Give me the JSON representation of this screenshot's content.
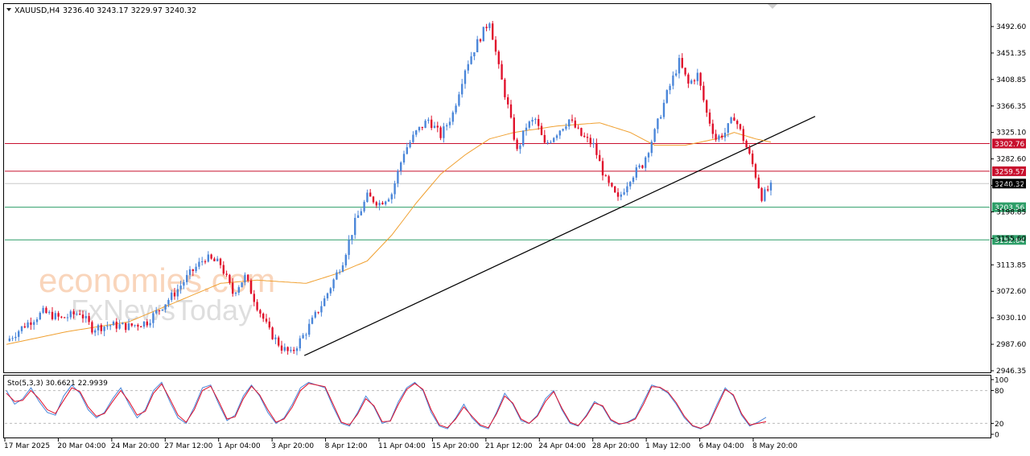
{
  "header": {
    "symbol": "XAUUSD,H4",
    "ohlc": "3236.40 3243.17 3229.97 3240.32"
  },
  "watermark": {
    "brand_top": "economies.com",
    "brand_bottom": "FxNewsToday"
  },
  "colors": {
    "bull": "#4a86d9",
    "bear": "#e0102b",
    "ma": "#f0a030",
    "resistance": "#c8102e",
    "support": "#2e9e68",
    "trendline": "#000000",
    "stoch_main": "#4a86d9",
    "stoch_signal": "#e0102b"
  },
  "chart_data": [
    {
      "type": "candlestick",
      "symbol": "XAUUSD",
      "timeframe": "H4",
      "ylim": [
        2946.35,
        3520
      ],
      "y_ticks": [
        "3492.60",
        "3451.35",
        "3408.85",
        "3366.35",
        "3325.10",
        "3282.60",
        "3240.32",
        "3198.85",
        "3155.60",
        "3113.85",
        "3072.60",
        "3030.10",
        "2987.60",
        "2946.35"
      ],
      "x_ticks": [
        "17 Mar 2025",
        "20 Mar 04:00",
        "24 Mar 20:00",
        "27 Mar 12:00",
        "1 Apr 04:00",
        "3 Apr 20:00",
        "8 Apr 12:00",
        "11 Apr 04:00",
        "15 Apr 20:00",
        "21 Apr 12:00",
        "24 Apr 04:00",
        "28 Apr 20:00",
        "1 May 12:00",
        "6 May 04:00",
        "8 May 20:00"
      ],
      "levels": [
        {
          "value": 3302.76,
          "label": "3302.76",
          "kind": "resistance"
        },
        {
          "value": 3259.57,
          "label": "3259.57",
          "kind": "resistance"
        },
        {
          "value": 3240.32,
          "label": "3240.32",
          "kind": "current"
        },
        {
          "value": 3203.56,
          "label": "3203.56",
          "kind": "support"
        },
        {
          "value": 3152.64,
          "label": "3152.64",
          "kind": "support"
        }
      ],
      "trendline": {
        "from": [
          "3 Apr 20:00",
          2970
        ],
        "to": [
          "8 May 20:00",
          3345
        ]
      },
      "price_path": [
        [
          0,
          2995
        ],
        [
          6,
          3020
        ],
        [
          12,
          3040
        ],
        [
          18,
          3030
        ],
        [
          24,
          3040
        ],
        [
          28,
          3015
        ],
        [
          34,
          3020
        ],
        [
          40,
          3018
        ],
        [
          46,
          3025
        ],
        [
          50,
          3045
        ],
        [
          55,
          3070
        ],
        [
          60,
          3100
        ],
        [
          65,
          3125
        ],
        [
          70,
          3115
        ],
        [
          74,
          3070
        ],
        [
          78,
          3095
        ],
        [
          82,
          3050
        ],
        [
          86,
          3010
        ],
        [
          90,
          2985
        ],
        [
          93,
          2975
        ],
        [
          98,
          3010
        ],
        [
          104,
          3060
        ],
        [
          110,
          3120
        ],
        [
          114,
          3180
        ],
        [
          118,
          3220
        ],
        [
          122,
          3210
        ],
        [
          126,
          3225
        ],
        [
          130,
          3290
        ],
        [
          134,
          3320
        ],
        [
          138,
          3340
        ],
        [
          142,
          3315
        ],
        [
          146,
          3350
        ],
        [
          150,
          3420
        ],
        [
          154,
          3460
        ],
        [
          158,
          3495
        ],
        [
          161,
          3420
        ],
        [
          164,
          3360
        ],
        [
          167,
          3290
        ],
        [
          170,
          3330
        ],
        [
          173,
          3340
        ],
        [
          176,
          3300
        ],
        [
          180,
          3320
        ],
        [
          184,
          3340
        ],
        [
          188,
          3315
        ],
        [
          192,
          3300
        ],
        [
          196,
          3245
        ],
        [
          200,
          3215
        ],
        [
          204,
          3250
        ],
        [
          208,
          3270
        ],
        [
          212,
          3320
        ],
        [
          216,
          3380
        ],
        [
          220,
          3430
        ],
        [
          223,
          3395
        ],
        [
          226,
          3410
        ],
        [
          229,
          3350
        ],
        [
          232,
          3310
        ],
        [
          235,
          3320
        ],
        [
          238,
          3345
        ],
        [
          241,
          3310
        ],
        [
          244,
          3270
        ],
        [
          247,
          3220
        ],
        [
          250,
          3235
        ]
      ],
      "ma_path": [
        [
          0,
          2990
        ],
        [
          20,
          3010
        ],
        [
          40,
          3025
        ],
        [
          55,
          3055
        ],
        [
          70,
          3085
        ],
        [
          82,
          3090
        ],
        [
          98,
          3085
        ],
        [
          108,
          3100
        ],
        [
          118,
          3120
        ],
        [
          126,
          3160
        ],
        [
          134,
          3210
        ],
        [
          142,
          3255
        ],
        [
          150,
          3285
        ],
        [
          158,
          3310
        ],
        [
          166,
          3320
        ],
        [
          180,
          3330
        ],
        [
          194,
          3335
        ],
        [
          204,
          3320
        ],
        [
          212,
          3300
        ],
        [
          222,
          3300
        ],
        [
          232,
          3310
        ],
        [
          238,
          3320
        ],
        [
          245,
          3310
        ],
        [
          250,
          3305
        ]
      ]
    },
    {
      "type": "line",
      "title": "Sto(5,3,3) 30.6621 22.9939",
      "ylim": [
        0,
        100
      ],
      "y_ticks": [
        "100",
        "80",
        "20",
        "0"
      ],
      "levels": [
        80,
        20
      ],
      "series": [
        {
          "name": "main",
          "values": [
            80,
            55,
            65,
            85,
            60,
            40,
            35,
            70,
            90,
            75,
            45,
            30,
            40,
            65,
            85,
            55,
            30,
            45,
            80,
            95,
            60,
            30,
            20,
            50,
            85,
            90,
            55,
            25,
            35,
            70,
            90,
            70,
            40,
            20,
            30,
            55,
            85,
            95,
            90,
            85,
            50,
            20,
            15,
            40,
            70,
            50,
            20,
            25,
            60,
            85,
            95,
            80,
            40,
            15,
            10,
            30,
            55,
            30,
            15,
            10,
            40,
            75,
            55,
            25,
            20,
            35,
            65,
            80,
            45,
            20,
            15,
            35,
            60,
            50,
            25,
            18,
            22,
            30,
            60,
            90,
            85,
            75,
            55,
            30,
            15,
            10,
            20,
            55,
            85,
            70,
            35,
            15,
            22,
            31
          ]
        },
        {
          "name": "signal",
          "values": [
            75,
            60,
            62,
            80,
            65,
            45,
            38,
            62,
            85,
            78,
            50,
            33,
            38,
            60,
            80,
            60,
            35,
            42,
            75,
            92,
            65,
            35,
            22,
            45,
            80,
            88,
            60,
            28,
            32,
            65,
            88,
            72,
            45,
            22,
            28,
            50,
            80,
            93,
            90,
            87,
            55,
            22,
            17,
            37,
            65,
            52,
            23,
            24,
            55,
            82,
            93,
            82,
            45,
            17,
            12,
            28,
            50,
            33,
            17,
            12,
            37,
            70,
            57,
            28,
            20,
            33,
            60,
            78,
            48,
            22,
            16,
            33,
            57,
            52,
            27,
            19,
            21,
            28,
            55,
            87,
            86,
            77,
            58,
            33,
            16,
            11,
            18,
            50,
            82,
            72,
            38,
            17,
            20,
            23
          ]
        }
      ]
    }
  ]
}
